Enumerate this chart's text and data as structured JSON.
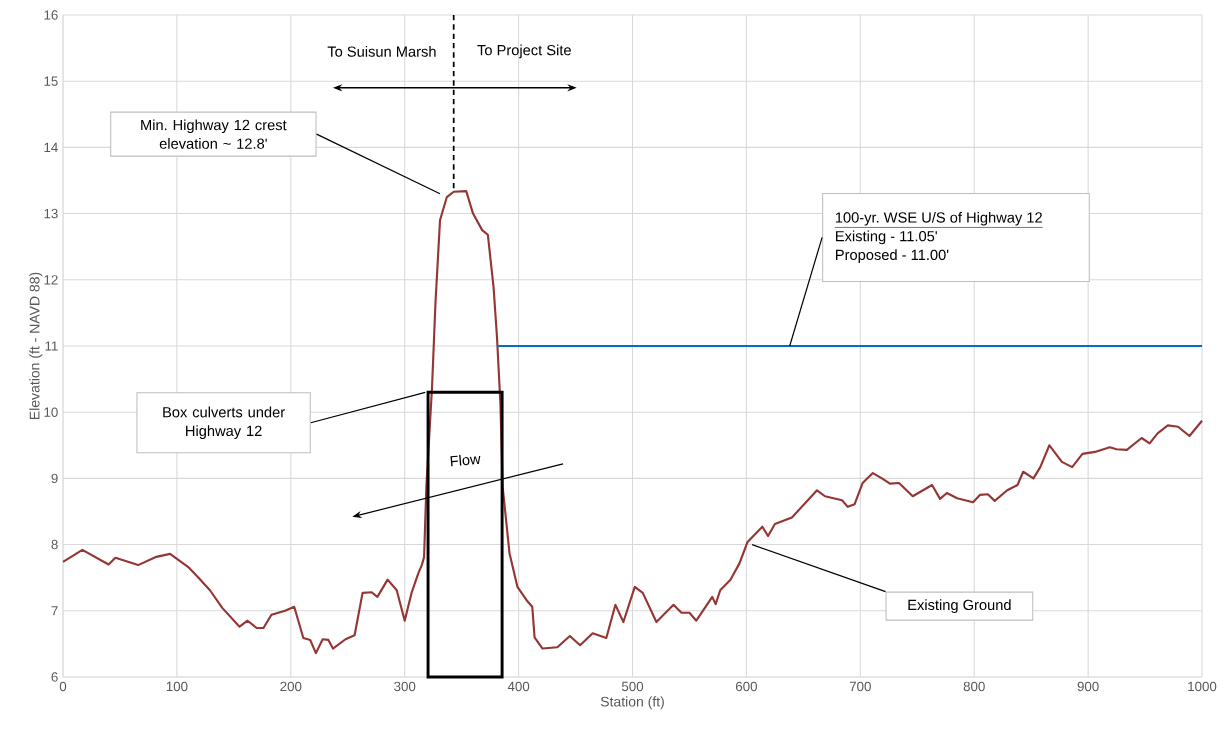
{
  "chart_data": {
    "type": "line",
    "xlabel": "Station (ft)",
    "ylabel": "Elevation (ft - NAVD 88)",
    "xlim": [
      0,
      1000
    ],
    "xticks": [
      0,
      100,
      200,
      300,
      400,
      500,
      600,
      700,
      800,
      900,
      1000
    ],
    "ylim": [
      6,
      16
    ],
    "yticks": [
      6,
      7,
      8,
      9,
      10,
      11,
      12,
      13,
      14,
      15,
      16
    ],
    "grid": true,
    "series": [
      {
        "color": "#943634",
        "x": [
          0,
          17,
          40,
          46,
          66,
          81,
          94,
          110,
          119,
          129,
          140,
          155,
          162,
          170,
          176,
          183,
          195,
          203,
          211,
          217,
          222,
          228,
          233,
          237,
          248,
          256,
          263,
          271,
          276,
          285,
          293,
          300,
          306,
          312,
          315,
          317,
          319,
          324,
          327,
          331,
          337,
          343,
          354,
          360,
          368,
          373,
          378,
          381,
          384,
          386,
          392,
          399,
          407,
          412,
          414,
          421,
          434,
          445,
          454,
          465,
          477,
          485,
          492,
          502,
          509,
          521,
          536,
          543,
          550,
          556,
          570,
          573,
          577,
          586,
          594,
          601,
          614,
          619,
          625,
          640,
          662,
          669,
          684,
          689,
          695,
          702,
          711,
          719,
          726,
          734,
          746,
          763,
          770,
          776,
          785,
          799,
          805,
          812,
          818,
          829,
          838,
          843,
          852,
          858,
          866,
          877,
          886,
          895,
          906,
          919,
          925,
          934,
          947,
          954,
          961,
          970,
          979,
          989,
          1000
        ],
        "values": [
          7.74,
          7.92,
          7.7,
          7.8,
          7.69,
          7.81,
          7.86,
          7.66,
          7.5,
          7.31,
          7.04,
          6.76,
          6.85,
          6.74,
          6.74,
          6.94,
          7.0,
          7.06,
          6.59,
          6.56,
          6.36,
          6.57,
          6.56,
          6.43,
          6.57,
          6.63,
          7.27,
          7.28,
          7.21,
          7.47,
          7.31,
          6.85,
          7.27,
          7.57,
          7.69,
          7.81,
          8.87,
          10.38,
          11.65,
          12.9,
          13.25,
          13.33,
          13.34,
          13.0,
          12.75,
          12.68,
          11.89,
          11.14,
          10.14,
          8.87,
          7.87,
          7.36,
          7.16,
          7.06,
          6.6,
          6.43,
          6.45,
          6.62,
          6.48,
          6.66,
          6.59,
          7.09,
          6.83,
          7.36,
          7.27,
          6.83,
          7.09,
          6.97,
          6.97,
          6.85,
          7.21,
          7.1,
          7.31,
          7.47,
          7.72,
          8.04,
          8.27,
          8.13,
          8.31,
          8.41,
          8.82,
          8.73,
          8.67,
          8.57,
          8.61,
          8.93,
          9.08,
          9.0,
          8.92,
          8.93,
          8.73,
          8.9,
          8.69,
          8.78,
          8.7,
          8.64,
          8.75,
          8.76,
          8.66,
          8.82,
          8.9,
          9.1,
          9.0,
          9.17,
          9.5,
          9.25,
          9.17,
          9.37,
          9.4,
          9.47,
          9.44,
          9.43,
          9.61,
          9.53,
          9.68,
          9.8,
          9.78,
          9.64,
          9.87
        ]
      },
      {
        "color": "#0070c0",
        "x": [
          381,
          1000
        ],
        "values": [
          11,
          11
        ]
      },
      {
        "type": "bar",
        "color": "#000000",
        "x": [
          353
        ],
        "values": [
          10.3
        ]
      }
    ],
    "ref_lines": [
      {
        "axis": "x",
        "value": 343,
        "color": "#000000",
        "line_style": "dashed"
      }
    ],
    "annotations": [
      "To Suisun Marsh",
      "To Project Site",
      "Min. Highway 12 crest elevation ~ 12.8'",
      {
        "text": "100-yr. WSE U/S of Highway 12",
        "x": 638,
        "y": 11
      },
      "Existing - 11.05'",
      "Proposed - 11.00'",
      "Box culverts under Highway 12",
      "Flow",
      "Existing Ground"
    ]
  }
}
